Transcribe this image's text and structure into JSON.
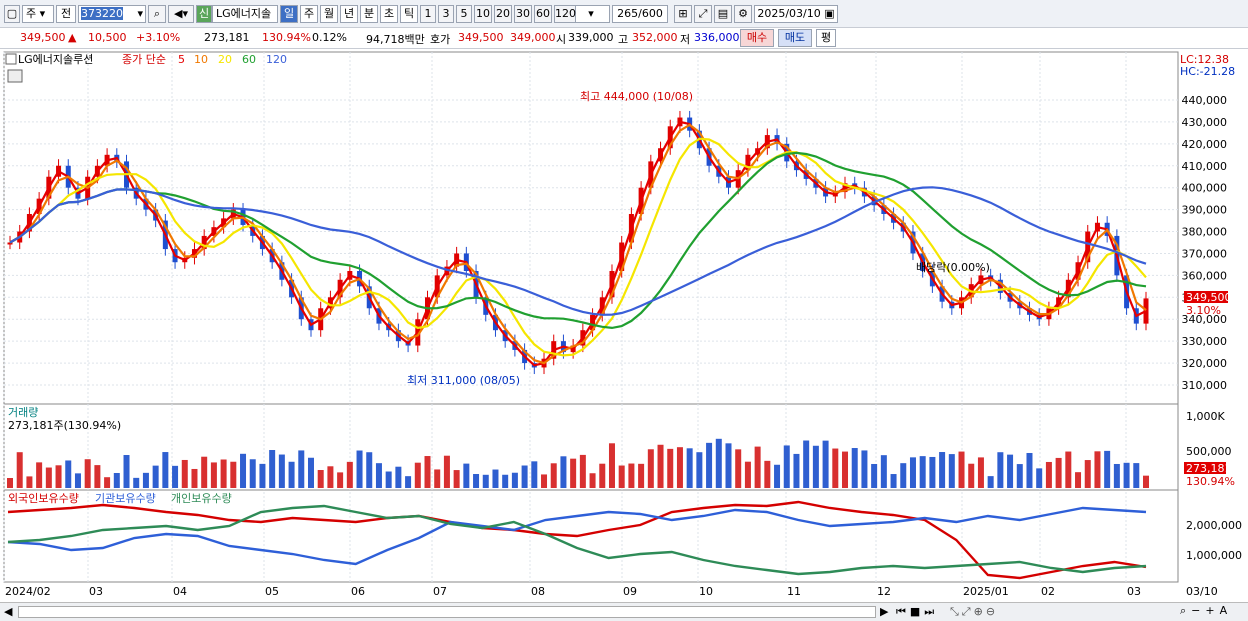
{
  "toolbar": {
    "type_label": "주",
    "prev_label": "전",
    "code_value": "373220",
    "stock_badge": "신",
    "stock_name": "LG에너지솔",
    "periods": [
      "일",
      "주",
      "월",
      "년",
      "분",
      "초",
      "틱"
    ],
    "selected_period": "일",
    "intervals": [
      "1",
      "3",
      "5",
      "10",
      "20",
      "30",
      "60",
      "120"
    ],
    "count": "265",
    "count_total": "/600",
    "date_value": "2025/03/10"
  },
  "info": {
    "price": "349,500",
    "change": "10,500",
    "change_pct": "+3.10%",
    "volume": "273,181",
    "volume_pct": "130.94%",
    "turnover": "0.12%",
    "amount": "94,718백만",
    "quote_label": "호가",
    "ask": "349,500",
    "bid": "349,000",
    "open_label": "시",
    "open": "339,000",
    "high_label": "고",
    "high": "352,000",
    "low_label": "저",
    "low": "336,000",
    "buy_label": "매수",
    "sell_label": "매도",
    "eval_label": "평"
  },
  "price_panel": {
    "legend_name": "LG에너지솔루션",
    "legend_ma": "종가 단순",
    "ma_periods": [
      "5",
      "10",
      "20",
      "60",
      "120"
    ],
    "ma_colors": [
      "#e60000",
      "#f07800",
      "#f5e600",
      "#20a030",
      "#3a5fd8"
    ],
    "lc_label": "LC:12.38",
    "hc_label": "HC:-21.28",
    "high_annotation": "최고 444,000 (10/08)",
    "low_annotation": "최저 311,000 (08/05)",
    "dividend_annotation": "배당락(0.00%)",
    "price_tag": "349,500",
    "price_tag_pct": "3.10%",
    "y_ticks": [
      "440,000",
      "430,000",
      "420,000",
      "410,000",
      "400,000",
      "390,000",
      "380,000",
      "370,000",
      "360,000",
      "350,000",
      "340,000",
      "330,000",
      "320,000",
      "310,000"
    ]
  },
  "volume_panel": {
    "title": "거래량",
    "value_label": "273,181주(130.94%)",
    "y_ticks": [
      "1,000K",
      "500,000"
    ],
    "tag": "273,181",
    "tag_pct": "130.94%"
  },
  "holdings_panel": {
    "series": [
      "외국인보유수량",
      "기관보유수량",
      "개인보유수량"
    ],
    "colors": [
      "#d40000",
      "#2e5fd8",
      "#2e8b57"
    ],
    "y_ticks": [
      "2,000,000",
      "1,000,000"
    ]
  },
  "x_axis": {
    "labels": [
      "2024/02",
      "03",
      "04",
      "05",
      "06",
      "07",
      "08",
      "09",
      "10",
      "11",
      "12",
      "2025/01",
      "02",
      "03"
    ],
    "right_label": "03/10"
  },
  "chart_data": {
    "type": "candlestick",
    "price_series_approx": [
      375,
      380,
      388,
      395,
      405,
      410,
      400,
      395,
      405,
      410,
      415,
      412,
      400,
      395,
      390,
      385,
      372,
      366,
      368,
      372,
      378,
      382,
      386,
      390,
      383,
      378,
      372,
      366,
      358,
      350,
      340,
      335,
      345,
      350,
      358,
      362,
      355,
      345,
      338,
      335,
      330,
      328,
      340,
      350,
      360,
      364,
      370,
      362,
      350,
      342,
      335,
      330,
      326,
      320,
      318,
      322,
      330,
      325,
      328,
      335,
      342,
      350,
      362,
      375,
      388,
      400,
      412,
      418,
      428,
      432,
      426,
      418,
      410,
      405,
      400,
      408,
      415,
      418,
      424,
      420,
      412,
      408,
      404,
      400,
      396,
      398,
      402,
      400,
      396,
      392,
      388,
      384,
      380,
      370,
      362,
      355,
      348,
      345,
      350,
      356,
      360,
      358,
      352,
      348,
      345,
      342,
      340,
      345,
      350,
      358,
      366,
      380,
      384,
      378,
      360,
      345,
      338,
      349.5
    ],
    "y_range": [
      305000,
      448000
    ]
  }
}
